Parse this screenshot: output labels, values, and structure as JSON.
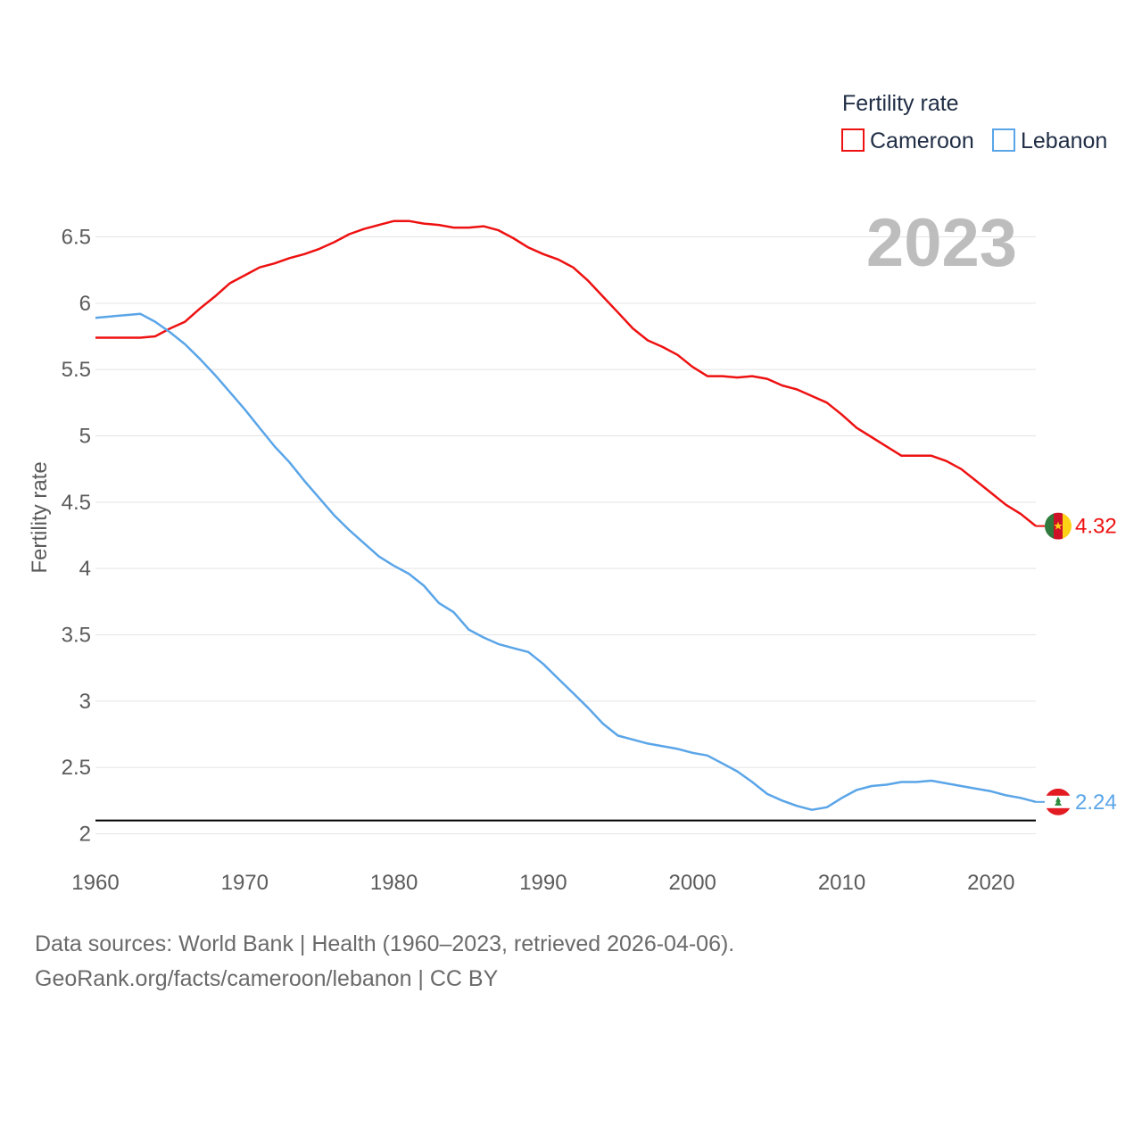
{
  "colors": {
    "cameroon": "#ee1111",
    "lebanon": "#5aa5e8",
    "grid": "#e4e4e4",
    "reference": "#000000"
  },
  "legend": {
    "title": "Fertility rate",
    "items": [
      {
        "label": "Cameroon",
        "color": "#ee1111"
      },
      {
        "label": "Lebanon",
        "color": "#5aa5e8"
      }
    ]
  },
  "year_display": "2023",
  "footer": {
    "line1": "Data sources: World Bank | Health (1960–2023, retrieved 2026-04-06).",
    "line2": "GeoRank.org/facts/cameroon/lebanon | CC BY"
  },
  "chart_data": {
    "type": "line",
    "title": "Fertility rate",
    "xlabel": "",
    "ylabel": "Fertility rate",
    "xlim": [
      1960,
      2023
    ],
    "ylim": [
      2,
      6.5
    ],
    "xticks": [
      1960,
      1970,
      1980,
      1990,
      2000,
      2010,
      2020
    ],
    "yticks": [
      2,
      2.5,
      3,
      3.5,
      4,
      4.5,
      5,
      5.5,
      6,
      6.5
    ],
    "ytick_labels": [
      "2",
      "2.5",
      "3",
      "3.5",
      "4",
      "4.5",
      "5",
      "5.5",
      "6",
      "6.5"
    ],
    "reference_line": 2.1,
    "x": [
      1960,
      1961,
      1962,
      1963,
      1964,
      1965,
      1966,
      1967,
      1968,
      1969,
      1970,
      1971,
      1972,
      1973,
      1974,
      1975,
      1976,
      1977,
      1978,
      1979,
      1980,
      1981,
      1982,
      1983,
      1984,
      1985,
      1986,
      1987,
      1988,
      1989,
      1990,
      1991,
      1992,
      1993,
      1994,
      1995,
      1996,
      1997,
      1998,
      1999,
      2000,
      2001,
      2002,
      2003,
      2004,
      2005,
      2006,
      2007,
      2008,
      2009,
      2010,
      2011,
      2012,
      2013,
      2014,
      2015,
      2016,
      2017,
      2018,
      2019,
      2020,
      2021,
      2022,
      2023
    ],
    "series": [
      {
        "name": "Cameroon",
        "color": "#ee1111",
        "end_label": "4.32",
        "values": [
          5.74,
          5.74,
          5.74,
          5.74,
          5.75,
          5.81,
          5.86,
          5.96,
          6.05,
          6.15,
          6.21,
          6.27,
          6.3,
          6.34,
          6.37,
          6.41,
          6.46,
          6.52,
          6.56,
          6.59,
          6.62,
          6.62,
          6.6,
          6.59,
          6.57,
          6.57,
          6.58,
          6.55,
          6.49,
          6.42,
          6.37,
          6.33,
          6.27,
          6.17,
          6.05,
          5.93,
          5.81,
          5.72,
          5.67,
          5.61,
          5.52,
          5.45,
          5.45,
          5.44,
          5.45,
          5.43,
          5.38,
          5.35,
          5.3,
          5.25,
          5.16,
          5.06,
          4.99,
          4.92,
          4.85,
          4.85,
          4.85,
          4.81,
          4.75,
          4.66,
          4.57,
          4.48,
          4.41,
          4.32
        ]
      },
      {
        "name": "Lebanon",
        "color": "#5aa5e8",
        "end_label": "2.24",
        "values": [
          5.89,
          5.9,
          5.91,
          5.92,
          5.86,
          5.78,
          5.69,
          5.58,
          5.46,
          5.33,
          5.2,
          5.06,
          4.92,
          4.8,
          4.66,
          4.53,
          4.4,
          4.29,
          4.19,
          4.09,
          4.02,
          3.96,
          3.87,
          3.74,
          3.67,
          3.54,
          3.48,
          3.43,
          3.4,
          3.37,
          3.28,
          3.17,
          3.06,
          2.95,
          2.83,
          2.74,
          2.71,
          2.68,
          2.66,
          2.64,
          2.61,
          2.59,
          2.53,
          2.47,
          2.39,
          2.3,
          2.25,
          2.21,
          2.18,
          2.2,
          2.27,
          2.33,
          2.36,
          2.37,
          2.39,
          2.39,
          2.4,
          2.38,
          2.36,
          2.34,
          2.32,
          2.29,
          2.27,
          2.24
        ]
      }
    ]
  }
}
